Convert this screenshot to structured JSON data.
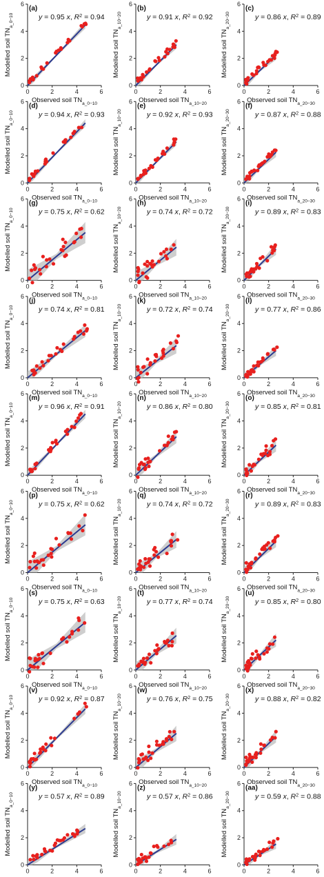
{
  "chart_data": {
    "type": "scatter",
    "layout": {
      "rows": 9,
      "cols": 3
    },
    "axes": {
      "xlim": [
        0,
        6
      ],
      "ylim": [
        0,
        6
      ],
      "xticks": [
        0,
        2,
        4,
        6
      ],
      "yticks": [
        0,
        2,
        4,
        6
      ],
      "tick_labels": [
        "0",
        "2",
        "4",
        "6"
      ]
    },
    "depths": [
      {
        "xlabel_main": "Observed soil TN",
        "xlabel_sub": "a_0−10",
        "ylabel_main": "Modelled soil TN",
        "ylabel_sub": "a_0−10",
        "xmax": 4.7
      },
      {
        "xlabel_main": "Observed soil TN",
        "xlabel_sub": "a_10−20",
        "ylabel_main": "Modelled soil TN",
        "ylabel_sub": "a_10−20",
        "xmax": 3.3
      },
      {
        "xlabel_main": "Observed soil TN",
        "xlabel_sub": "a_20−30",
        "ylabel_main": "Modelled soil TN",
        "ylabel_sub": "a_20−30",
        "xmax": 2.6
      }
    ],
    "colors": {
      "points": "#e8201e",
      "fit_line": "#2b3a8f",
      "band": "#bdbdbd"
    },
    "panels": [
      {
        "label": "(a)",
        "slope": 0.95,
        "slope_text": "0.95",
        "r2_text": "0.94"
      },
      {
        "label": "(b)",
        "slope": 0.91,
        "slope_text": "0.91",
        "r2_text": "0.92"
      },
      {
        "label": "(c)",
        "slope": 0.86,
        "slope_text": "0.86",
        "r2_text": "0.89"
      },
      {
        "label": "(d)",
        "slope": 0.94,
        "slope_text": "0.94",
        "r2_text": "0.93"
      },
      {
        "label": "(e)",
        "slope": 0.92,
        "slope_text": "0.92",
        "r2_text": "0.93"
      },
      {
        "label": "(f)",
        "slope": 0.87,
        "slope_text": "0.87",
        "r2_text": "0.88"
      },
      {
        "label": "(g)",
        "slope": 0.75,
        "slope_text": "0.75",
        "r2_text": "0.62"
      },
      {
        "label": "(h)",
        "slope": 0.74,
        "slope_text": "0.74",
        "r2_text": "0.72"
      },
      {
        "label": "(i)",
        "slope": 0.89,
        "slope_text": "0.89",
        "r2_text": "0.83"
      },
      {
        "label": "(j)",
        "slope": 0.74,
        "slope_text": "0.74",
        "r2_text": "0.81"
      },
      {
        "label": "(k)",
        "slope": 0.72,
        "slope_text": "0.72",
        "r2_text": "0.74"
      },
      {
        "label": "(l)",
        "slope": 0.77,
        "slope_text": "0.77",
        "r2_text": "0.86"
      },
      {
        "label": "(m)",
        "slope": 0.96,
        "slope_text": "0.96",
        "r2_text": "0.91"
      },
      {
        "label": "(n)",
        "slope": 0.86,
        "slope_text": "0.86",
        "r2_text": "0.80"
      },
      {
        "label": "(o)",
        "slope": 0.85,
        "slope_text": "0.85",
        "r2_text": "0.81"
      },
      {
        "label": "(p)",
        "slope": 0.75,
        "slope_text": "0.75",
        "r2_text": "0.62"
      },
      {
        "label": "(q)",
        "slope": 0.74,
        "slope_text": "0.74",
        "r2_text": "0.72"
      },
      {
        "label": "(r)",
        "slope": 0.89,
        "slope_text": "0.89",
        "r2_text": "0.83"
      },
      {
        "label": "(s)",
        "slope": 0.75,
        "slope_text": "0.75",
        "r2_text": "0.63"
      },
      {
        "label": "(t)",
        "slope": 0.77,
        "slope_text": "0.77",
        "r2_text": "0.74"
      },
      {
        "label": "(u)",
        "slope": 0.85,
        "slope_text": "0.85",
        "r2_text": "0.80"
      },
      {
        "label": "(v)",
        "slope": 0.92,
        "slope_text": "0.92",
        "r2_text": "0.87"
      },
      {
        "label": "(w)",
        "slope": 0.76,
        "slope_text": "0.76",
        "r2_text": "0.75"
      },
      {
        "label": "(x)",
        "slope": 0.88,
        "slope_text": "0.88",
        "r2_text": "0.82"
      },
      {
        "label": "(y)",
        "slope": 0.57,
        "slope_text": "0.57",
        "r2_text": "0.89"
      },
      {
        "label": "(z)",
        "slope": 0.57,
        "slope_text": "0.57",
        "r2_text": "0.86"
      },
      {
        "label": "(aa)",
        "slope": 0.59,
        "slope_text": "0.59",
        "r2_text": "0.88"
      }
    ]
  }
}
